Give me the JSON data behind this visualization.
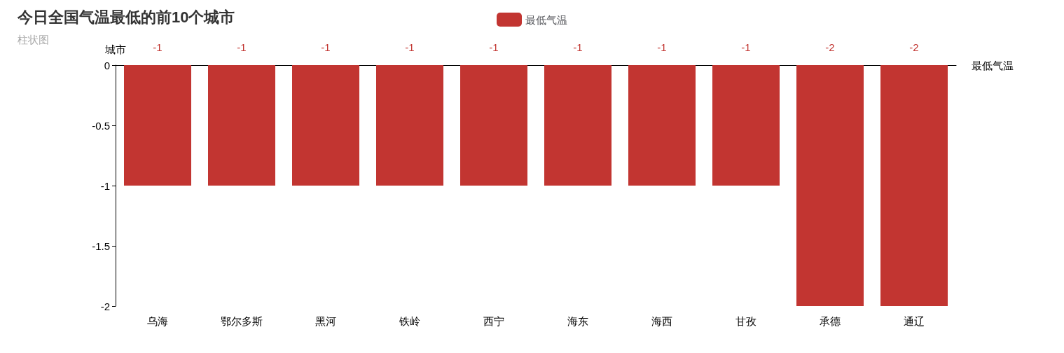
{
  "chart_data": {
    "type": "bar",
    "title": "今日全国气温最低的前10个城市",
    "subtitle": "柱状图",
    "xlabel": "最低气温",
    "ylabel": "城市",
    "categories": [
      "乌海",
      "鄂尔多斯",
      "黑河",
      "铁岭",
      "西宁",
      "海东",
      "海西",
      "甘孜",
      "承德",
      "通辽"
    ],
    "series": [
      {
        "name": "最低气温",
        "color": "#c23531",
        "values": [
          -1,
          -1,
          -1,
          -1,
          -1,
          -1,
          -1,
          -1,
          -2,
          -2
        ]
      }
    ],
    "ylim": [
      -2,
      0
    ],
    "yticks": [
      0,
      -0.5,
      -1,
      -1.5,
      -2
    ],
    "grid": false,
    "legend": "top",
    "data_labels": true
  }
}
